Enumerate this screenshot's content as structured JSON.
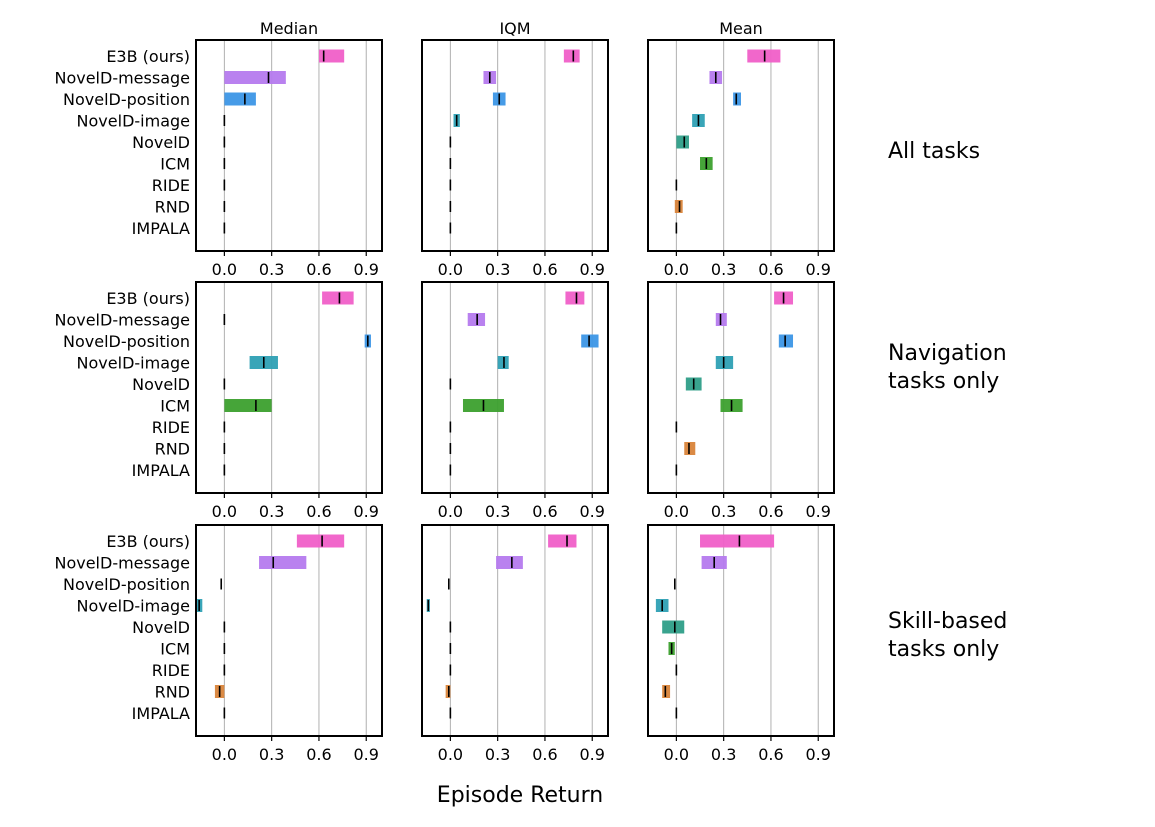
{
  "chart_data": {
    "type": "interval",
    "x_label": "Episode Return",
    "column_titles": [
      "Median",
      "IQM",
      "Mean"
    ],
    "row_titles": [
      [
        "All tasks"
      ],
      [
        "Navigation",
        "tasks only"
      ],
      [
        "Skill-based",
        "tasks only"
      ]
    ],
    "methods": [
      "E3B (ours)",
      "NovelD-message",
      "NovelD-position",
      "NovelD-image",
      "NovelD",
      "ICM",
      "RIDE",
      "RND",
      "IMPALA"
    ],
    "colors": [
      "#f05fc8",
      "#b57aee",
      "#3c96e6",
      "#2ea0b4",
      "#2e9e88",
      "#3ca02e",
      "#9a9a9a",
      "#d9843a",
      "#5a5a5a"
    ],
    "xlim": [
      -0.18,
      1.0
    ],
    "xticks": [
      0.0,
      0.3,
      0.6,
      0.9
    ],
    "xtick_labels": [
      "0.0",
      "0.3",
      "0.6",
      "0.9"
    ],
    "panels": [
      [
        [
          [
            0.6,
            0.76,
            0.63
          ],
          [
            0.0,
            0.39,
            0.28
          ],
          [
            0.0,
            0.2,
            0.13
          ],
          [
            0.0,
            0.0,
            0.0
          ],
          [
            0.0,
            0.0,
            0.0
          ],
          [
            0.0,
            0.0,
            0.0
          ],
          [
            0.0,
            0.0,
            0.0
          ],
          [
            0.0,
            0.0,
            0.0
          ],
          [
            0.0,
            0.0,
            0.0
          ]
        ],
        [
          [
            0.72,
            0.82,
            0.78
          ],
          [
            0.21,
            0.29,
            0.25
          ],
          [
            0.27,
            0.35,
            0.31
          ],
          [
            0.02,
            0.06,
            0.04
          ],
          [
            0.0,
            0.0,
            0.0
          ],
          [
            0.0,
            0.0,
            0.0
          ],
          [
            0.0,
            0.0,
            0.0
          ],
          [
            0.0,
            0.0,
            0.0
          ],
          [
            0.0,
            0.0,
            0.0
          ]
        ],
        [
          [
            0.45,
            0.66,
            0.56
          ],
          [
            0.21,
            0.29,
            0.25
          ],
          [
            0.36,
            0.41,
            0.38
          ],
          [
            0.1,
            0.18,
            0.14
          ],
          [
            0.0,
            0.08,
            0.05
          ],
          [
            0.15,
            0.23,
            0.19
          ],
          [
            0.0,
            0.0,
            0.0
          ],
          [
            -0.01,
            0.04,
            0.02
          ],
          [
            0.0,
            0.0,
            0.0
          ]
        ]
      ],
      [
        [
          [
            0.62,
            0.82,
            0.73
          ],
          [
            0.0,
            0.0,
            0.0
          ],
          [
            0.89,
            0.93,
            0.91
          ],
          [
            0.16,
            0.34,
            0.25
          ],
          [
            0.0,
            0.0,
            0.0
          ],
          [
            0.0,
            0.3,
            0.2
          ],
          [
            0.0,
            0.0,
            0.0
          ],
          [
            0.0,
            0.0,
            0.0
          ],
          [
            0.0,
            0.0,
            0.0
          ]
        ],
        [
          [
            0.73,
            0.85,
            0.8
          ],
          [
            0.11,
            0.22,
            0.17
          ],
          [
            0.83,
            0.94,
            0.88
          ],
          [
            0.3,
            0.37,
            0.34
          ],
          [
            0.0,
            0.0,
            0.0
          ],
          [
            0.08,
            0.34,
            0.21
          ],
          [
            0.0,
            0.0,
            0.0
          ],
          [
            0.0,
            0.0,
            0.0
          ],
          [
            0.0,
            0.0,
            0.0
          ]
        ],
        [
          [
            0.62,
            0.74,
            0.68
          ],
          [
            0.25,
            0.32,
            0.28
          ],
          [
            0.65,
            0.74,
            0.69
          ],
          [
            0.25,
            0.36,
            0.3
          ],
          [
            0.06,
            0.16,
            0.11
          ],
          [
            0.28,
            0.42,
            0.35
          ],
          [
            0.0,
            0.0,
            0.0
          ],
          [
            0.05,
            0.12,
            0.08
          ],
          [
            0.0,
            0.0,
            0.0
          ]
        ]
      ],
      [
        [
          [
            0.46,
            0.76,
            0.62
          ],
          [
            0.22,
            0.52,
            0.31
          ],
          [
            -0.02,
            -0.02,
            -0.02
          ],
          [
            -0.18,
            -0.14,
            -0.16
          ],
          [
            0.0,
            0.0,
            0.0
          ],
          [
            0.0,
            0.0,
            0.0
          ],
          [
            0.0,
            0.0,
            0.0
          ],
          [
            -0.06,
            0.0,
            -0.03
          ],
          [
            0.0,
            0.0,
            0.0
          ]
        ],
        [
          [
            0.62,
            0.8,
            0.74
          ],
          [
            0.29,
            0.46,
            0.39
          ],
          [
            -0.01,
            -0.01,
            -0.01
          ],
          [
            -0.15,
            -0.13,
            -0.14
          ],
          [
            0.0,
            0.0,
            0.0
          ],
          [
            0.0,
            0.0,
            0.0
          ],
          [
            0.0,
            0.0,
            0.0
          ],
          [
            -0.03,
            0.0,
            -0.01
          ],
          [
            0.0,
            0.0,
            0.0
          ]
        ],
        [
          [
            0.15,
            0.62,
            0.4
          ],
          [
            0.16,
            0.32,
            0.24
          ],
          [
            -0.01,
            -0.01,
            -0.01
          ],
          [
            -0.13,
            -0.05,
            -0.09
          ],
          [
            -0.09,
            0.05,
            -0.01
          ],
          [
            -0.05,
            -0.01,
            -0.03
          ],
          [
            0.0,
            0.0,
            0.0
          ],
          [
            -0.09,
            -0.04,
            -0.07
          ],
          [
            0.0,
            0.0,
            0.0
          ]
        ]
      ]
    ]
  }
}
